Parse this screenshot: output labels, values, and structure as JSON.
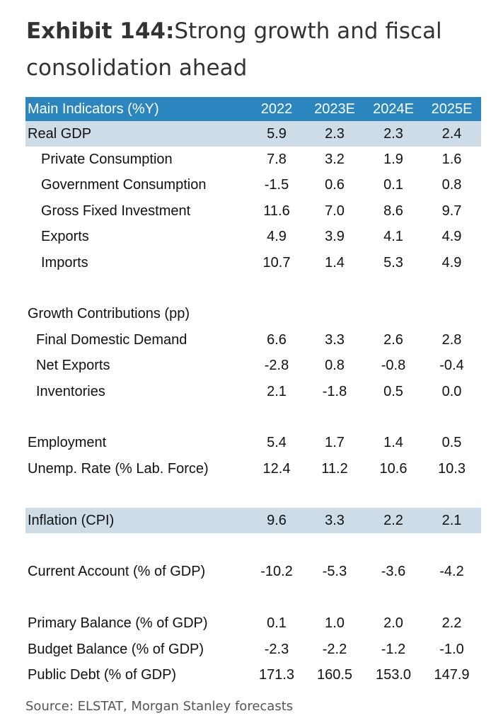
{
  "title": {
    "label": "Exhibit 144:",
    "text": "Strong growth and fiscal consolidation ahead"
  },
  "table": {
    "header": {
      "name": "Main Indicators (%Y)",
      "years": [
        "2022",
        "2023E",
        "2024E",
        "2025E"
      ]
    },
    "rows": [
      {
        "name": "Real GDP",
        "values": [
          "5.9",
          "2.3",
          "2.3",
          "2.4"
        ]
      },
      {
        "name": "Private Consumption",
        "values": [
          "7.8",
          "3.2",
          "1.9",
          "1.6"
        ]
      },
      {
        "name": "Government Consumption",
        "values": [
          "-1.5",
          "0.6",
          "0.1",
          "0.8"
        ]
      },
      {
        "name": "Gross Fixed Investment",
        "values": [
          "11.6",
          "7.0",
          "8.6",
          "9.7"
        ]
      },
      {
        "name": "Exports",
        "values": [
          "4.9",
          "3.9",
          "4.1",
          "4.9"
        ]
      },
      {
        "name": "Imports",
        "values": [
          "10.7",
          "1.4",
          "5.3",
          "4.9"
        ]
      },
      {
        "name": "Growth Contributions (pp)",
        "values": [
          "",
          "",
          "",
          ""
        ]
      },
      {
        "name": "Final Domestic Demand",
        "values": [
          "6.6",
          "3.3",
          "2.6",
          "2.8"
        ]
      },
      {
        "name": "Net Exports",
        "values": [
          "-2.8",
          "0.8",
          "-0.8",
          "-0.4"
        ]
      },
      {
        "name": "Inventories",
        "values": [
          "2.1",
          "-1.8",
          "0.5",
          "0.0"
        ]
      },
      {
        "name": "Employment",
        "values": [
          "5.4",
          "1.7",
          "1.4",
          "0.5"
        ]
      },
      {
        "name": "Unemp. Rate (% Lab. Force)",
        "values": [
          "12.4",
          "11.2",
          "10.6",
          "10.3"
        ]
      },
      {
        "name": "Inflation (CPI)",
        "values": [
          "9.6",
          "3.3",
          "2.2",
          "2.1"
        ]
      },
      {
        "name": "Current Account (% of GDP)",
        "values": [
          "-10.2",
          "-5.3",
          "-3.6",
          "-4.2"
        ]
      },
      {
        "name": "Primary Balance (% of GDP)",
        "values": [
          "0.1",
          "1.0",
          "2.0",
          "2.2"
        ]
      },
      {
        "name": "Budget Balance (% of GDP)",
        "values": [
          "-2.3",
          "-2.2",
          "-1.2",
          "-1.0"
        ]
      },
      {
        "name": "Public Debt (% of GDP)",
        "values": [
          "171.3",
          "160.5",
          "153.0",
          "147.9"
        ]
      }
    ]
  },
  "source": "Source: ELSTAT, Morgan Stanley forecasts",
  "colors": {
    "header_bg": "#2b86bf",
    "highlight_bg": "#cddce6"
  }
}
